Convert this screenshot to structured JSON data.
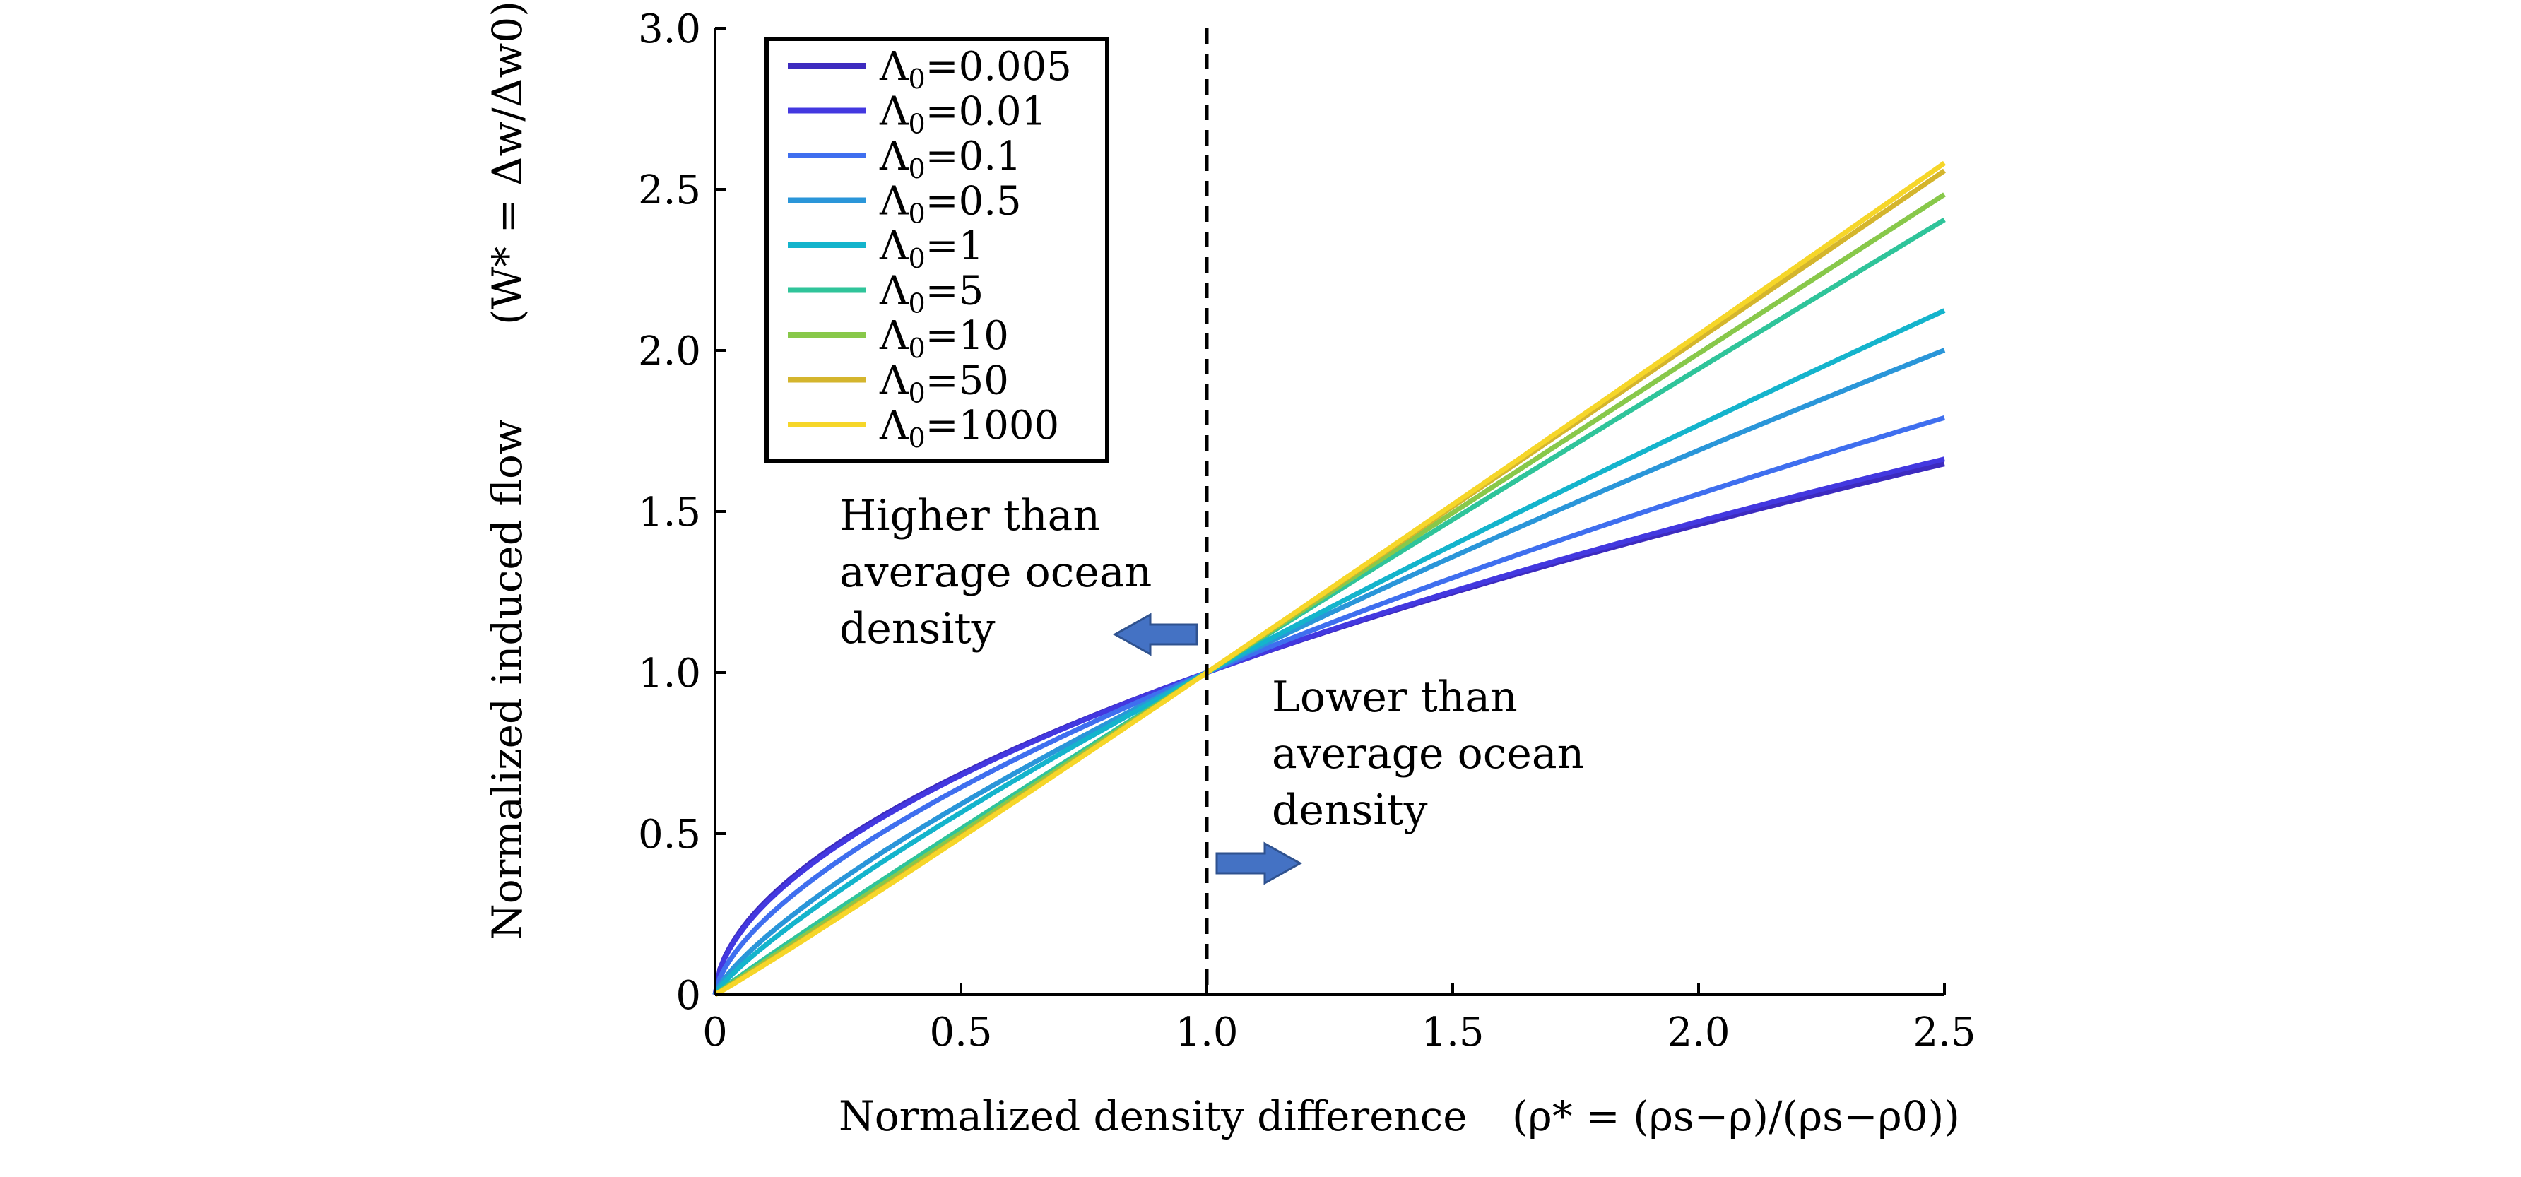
{
  "chart_data": {
    "type": "line",
    "xlabel": "Normalized density difference",
    "xlabel_formula": "(ρ* = (ρs−ρ)/(ρs−ρ0))",
    "ylabel": "Normalized induced flow",
    "ylabel_formula": "(W* = Δw/Δw0)",
    "xlim": [
      0,
      2.5
    ],
    "ylim": [
      0,
      3.0
    ],
    "x_ticks": [
      0,
      0.5,
      1.0,
      1.5,
      2.0,
      2.5
    ],
    "x_tick_labels": [
      "0",
      "0.5",
      "1.0",
      "1.5",
      "2.0",
      "2.5"
    ],
    "y_ticks": [
      0,
      0.5,
      1.0,
      1.5,
      2.0,
      2.5,
      3.0
    ],
    "y_tick_labels": [
      "0",
      "0.5",
      "1.0",
      "1.5",
      "2.0",
      "2.5",
      "3.0"
    ],
    "grid": false,
    "legend_position": "top-left",
    "reference_line": {
      "x": 1.0,
      "style": "dashed"
    },
    "series": [
      {
        "name": "Λ0=0.005",
        "value_label": "0.005",
        "color": "#3d2bbf",
        "power": 0.545
      },
      {
        "name": "Λ0=0.01",
        "value_label": "0.01",
        "color": "#4338e0",
        "power": 0.555
      },
      {
        "name": "Λ0=0.1",
        "value_label": "0.1",
        "color": "#3f6fef",
        "power": 0.636
      },
      {
        "name": "Λ0=0.5",
        "value_label": "0.5",
        "color": "#2a96d9",
        "power": 0.757
      },
      {
        "name": "Λ0=1",
        "value_label": "1",
        "color": "#14b4cc",
        "power": 0.822
      },
      {
        "name": "Λ0=5",
        "value_label": "5",
        "color": "#2fc49a",
        "power": 0.958
      },
      {
        "name": "Λ0=10",
        "value_label": "10",
        "color": "#88c84a",
        "power": 0.993
      },
      {
        "name": "Λ0=50",
        "value_label": "50",
        "color": "#d4b52d",
        "power": 1.025
      },
      {
        "name": "Λ0=1000",
        "value_label": "1000",
        "color": "#f6d629",
        "power": 1.035
      }
    ],
    "annotations": [
      {
        "lines": [
          "Higher than",
          "average ocean",
          "density"
        ],
        "arrow": "left"
      },
      {
        "lines": [
          "Lower than",
          "average ocean",
          "density"
        ],
        "arrow": "right"
      }
    ]
  }
}
